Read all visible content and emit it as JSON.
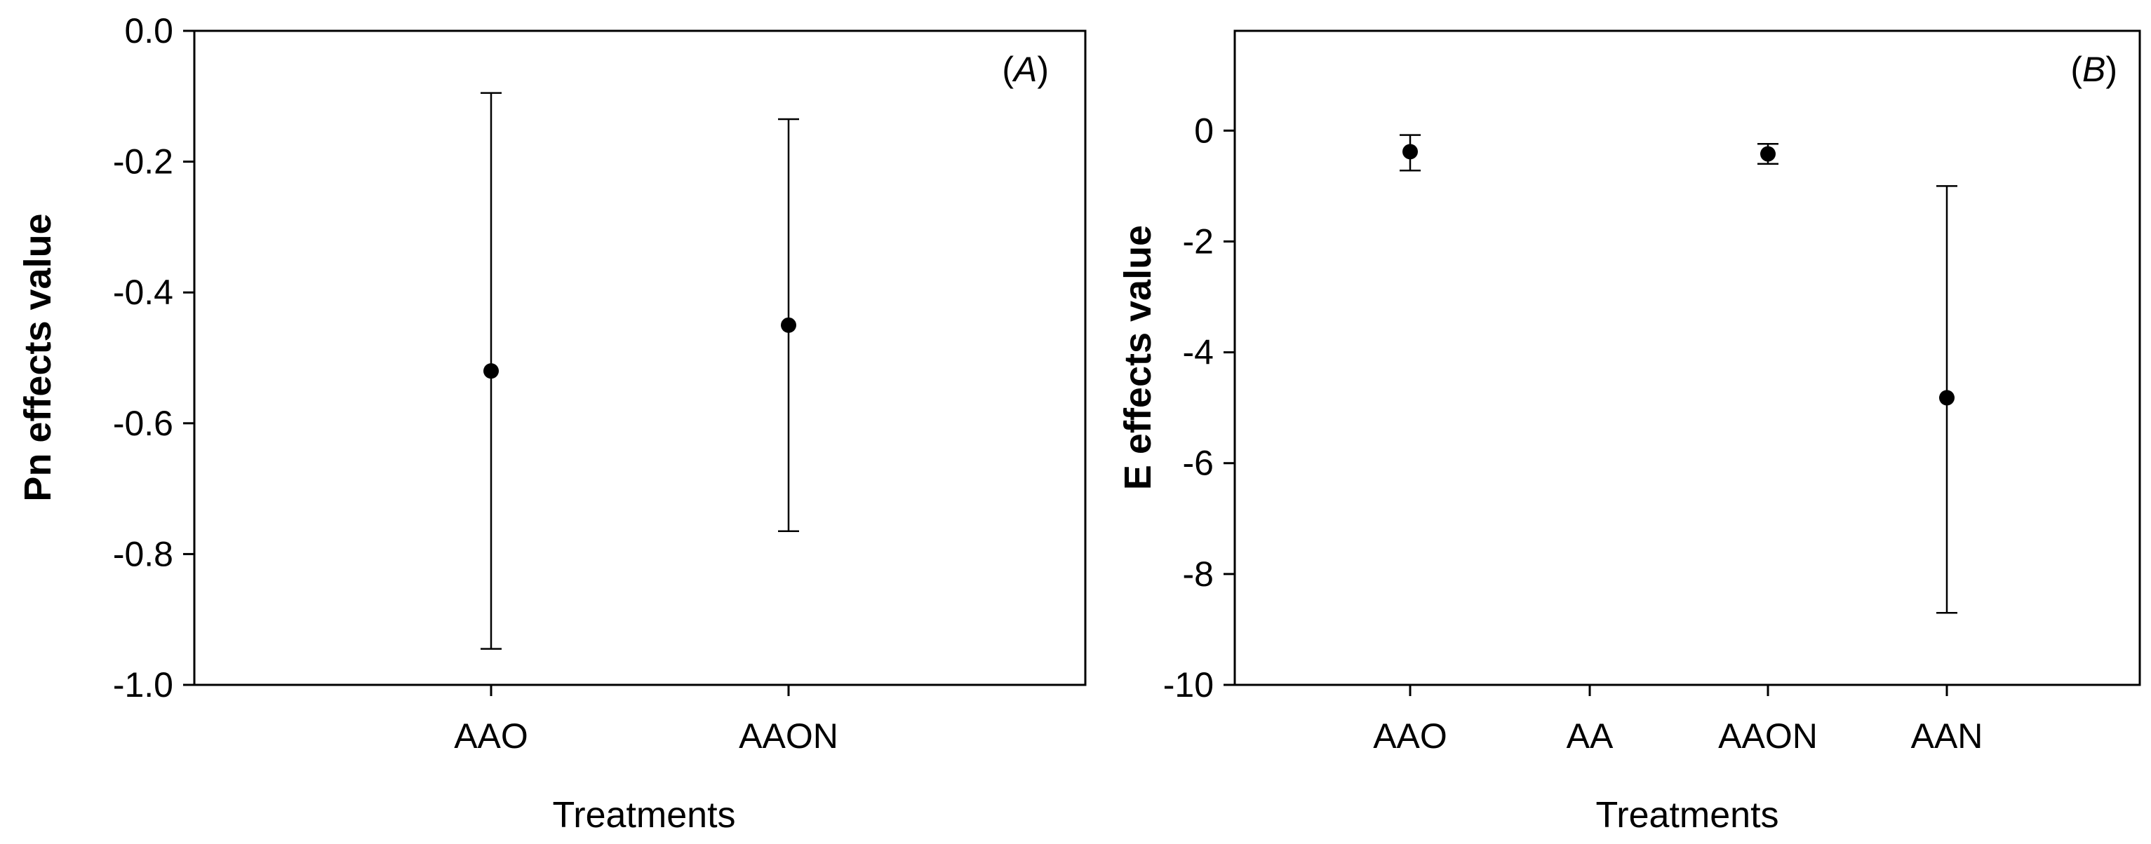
{
  "chart_data": [
    {
      "type": "scatter",
      "panel_label": {
        "open": "(",
        "letter": "A",
        "close": ")"
      },
      "xlabel": "Treatments",
      "ylabel": "Pn effects value",
      "categories": [
        "AAO",
        "AAON"
      ],
      "ylim": [
        -1.0,
        0.0
      ],
      "yticks": [
        0.0,
        -0.2,
        -0.4,
        -0.6,
        -0.8,
        -1.0
      ],
      "ytick_labels": [
        "0.0",
        "-0.2",
        "-0.4",
        "-0.6",
        "-0.8",
        "-1.0"
      ],
      "grid": false,
      "points": [
        {
          "category": "AAO",
          "y": -0.52,
          "lower": -0.945,
          "upper": -0.095
        },
        {
          "category": "AAON",
          "y": -0.45,
          "lower": -0.765,
          "upper": -0.135
        }
      ]
    },
    {
      "type": "scatter",
      "panel_label": {
        "open": "(",
        "letter": "B",
        "close": ")"
      },
      "xlabel": "Treatments",
      "ylabel": "E effects value",
      "categories": [
        "AAO",
        "AA",
        "AAON",
        "AAN"
      ],
      "ylim": [
        -10,
        1.8
      ],
      "yticks": [
        0,
        -2,
        -4,
        -6,
        -8,
        -10
      ],
      "ytick_labels": [
        "0",
        "-2",
        "-4",
        "-6",
        "-8",
        "-10"
      ],
      "grid": false,
      "points": [
        {
          "category": "AAO",
          "y": -0.38,
          "lower": -0.72,
          "upper": -0.08
        },
        {
          "category": "AAON",
          "y": -0.42,
          "lower": -0.6,
          "upper": -0.24
        },
        {
          "category": "AAN",
          "y": -4.82,
          "lower": -8.7,
          "upper": -1.0
        }
      ]
    }
  ]
}
